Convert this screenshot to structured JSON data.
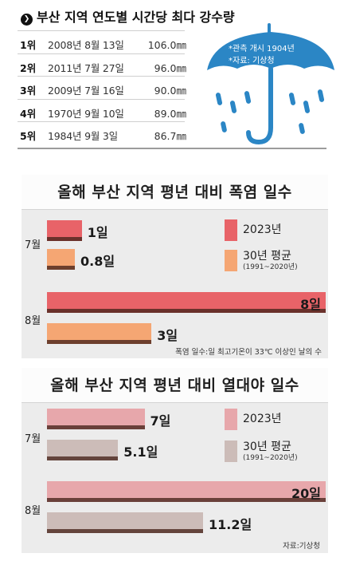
{
  "rainfall": {
    "title_icon": "❯",
    "title": "부산 지역 연도별 시간당 최다 강수량",
    "note_lines": [
      "*관측 개시 1904년",
      "*자료: 기상청"
    ],
    "rows": [
      {
        "rank": "1위",
        "date": "2008년 8월 13일",
        "amount": "106.0㎜"
      },
      {
        "rank": "2위",
        "date": "2011년 7월 27일",
        "amount": "96.0㎜"
      },
      {
        "rank": "3위",
        "date": "2009년 7월 16일",
        "amount": "90.0㎜"
      },
      {
        "rank": "4위",
        "date": "1970년 9월 10일",
        "amount": "89.0㎜"
      },
      {
        "rank": "5위",
        "date": "1984년 9월  3일",
        "amount": "86.7㎜"
      }
    ],
    "umbrella_color": "#2b86c5"
  },
  "chart_data": [
    {
      "type": "bar",
      "orientation": "horizontal",
      "title": "올해 부산 지역 평년 대비 폭염 일수",
      "categories": [
        "7월",
        "8월"
      ],
      "series": [
        {
          "name": "2023년",
          "values": [
            1,
            8
          ],
          "labels": [
            "1일",
            "8일"
          ],
          "color": "#e86368"
        },
        {
          "name": "30년 평균",
          "name_sub": "(1991~2020년)",
          "values": [
            0.8,
            3
          ],
          "labels": [
            "0.8일",
            "3일"
          ],
          "color": "#f5a673"
        }
      ],
      "footnote": "폭염 일수:일 최고기온이 33℃ 이상인 날의 수",
      "xlim": [
        0,
        8
      ]
    },
    {
      "type": "bar",
      "orientation": "horizontal",
      "title": "올해 부산 지역 평년 대비 열대야 일수",
      "categories": [
        "7월",
        "8월"
      ],
      "series": [
        {
          "name": "2023년",
          "values": [
            7,
            20
          ],
          "labels": [
            "7일",
            "20일"
          ],
          "color": "#e7a7ab"
        },
        {
          "name": "30년 평균",
          "name_sub": "(1991~2020년)",
          "values": [
            5.1,
            11.2
          ],
          "labels": [
            "5.1일",
            "11.2일"
          ],
          "color": "#ccbcb8"
        }
      ],
      "footnote": "자료:기상청",
      "xlim": [
        0,
        20
      ]
    }
  ]
}
